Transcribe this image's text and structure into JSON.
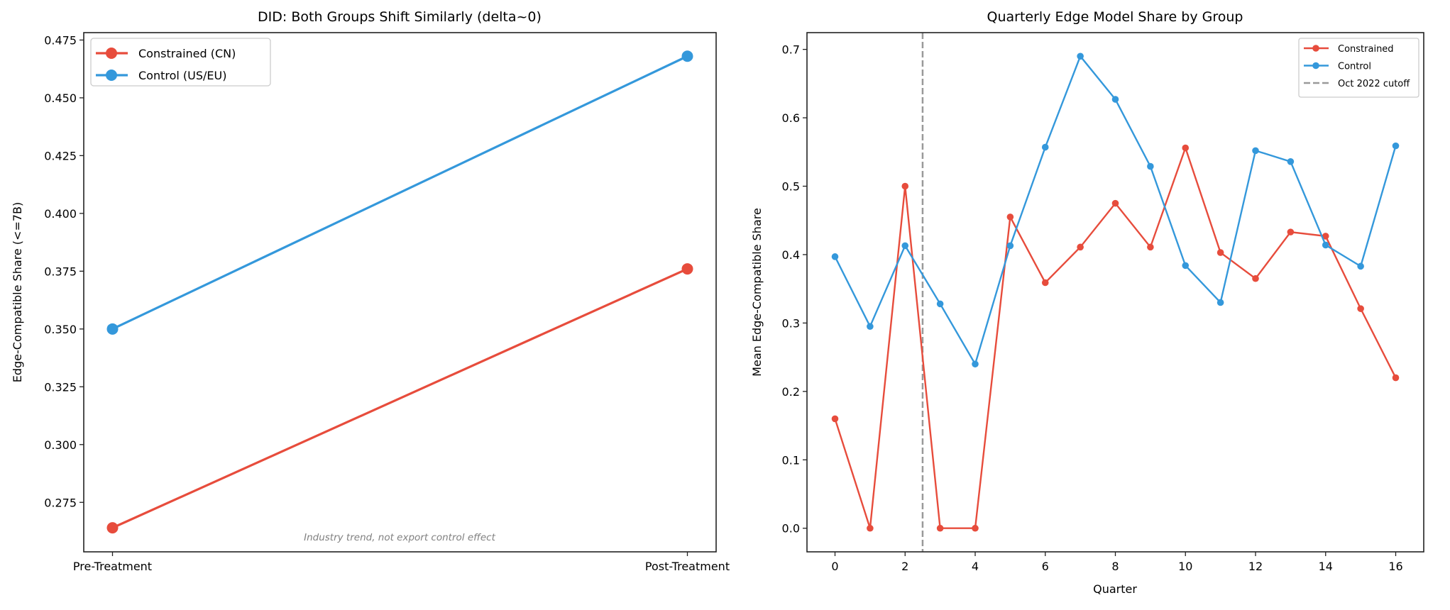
{
  "chart_data": [
    {
      "type": "line",
      "title": "DID: Both Groups Shift Similarly (delta~0)",
      "xlabel": "",
      "ylabel": "Edge-Compatible Share (<=7B)",
      "categories": [
        "Pre-Treatment",
        "Post-Treatment"
      ],
      "ylim": [
        0.2536,
        0.4782
      ],
      "yticks": [
        "0.275",
        "0.300",
        "0.325",
        "0.350",
        "0.375",
        "0.400",
        "0.425",
        "0.450",
        "0.475"
      ],
      "series": [
        {
          "name": "Constrained (CN)",
          "color": "#e74c3c",
          "values": [
            0.264,
            0.376
          ]
        },
        {
          "name": "Control (US/EU)",
          "color": "#3498db",
          "values": [
            0.35,
            0.468
          ]
        }
      ],
      "annotation": "Industry trend, not export control effect",
      "legend": "top-left",
      "grid": false
    },
    {
      "type": "line",
      "title": "Quarterly Edge Model Share by Group",
      "xlabel": "Quarter",
      "ylabel": "Mean Edge-Compatible Share",
      "x": [
        0,
        1,
        2,
        3,
        4,
        5,
        6,
        7,
        8,
        9,
        10,
        11,
        12,
        13,
        14,
        15,
        16
      ],
      "xlim": [
        -0.8,
        16.8
      ],
      "ylim": [
        -0.0345,
        0.7245
      ],
      "xticks": [
        "0",
        "2",
        "4",
        "6",
        "8",
        "10",
        "12",
        "14",
        "16"
      ],
      "yticks": [
        "0.0",
        "0.1",
        "0.2",
        "0.3",
        "0.4",
        "0.5",
        "0.6",
        "0.7"
      ],
      "series": [
        {
          "name": "Constrained",
          "color": "#e74c3c",
          "values": [
            0.16,
            0.0,
            0.5,
            0.0,
            0.0,
            0.455,
            0.359,
            0.411,
            0.475,
            0.411,
            0.556,
            0.403,
            0.365,
            0.433,
            0.427,
            0.321,
            0.22
          ]
        },
        {
          "name": "Control",
          "color": "#3498db",
          "values": [
            0.397,
            0.295,
            0.413,
            0.328,
            0.24,
            0.413,
            0.557,
            0.69,
            0.627,
            0.529,
            0.384,
            0.33,
            0.552,
            0.536,
            0.414,
            0.383,
            0.559
          ]
        }
      ],
      "vline": {
        "x": 2.5,
        "label": "Oct 2022 cutoff",
        "color": "#999999",
        "style": "dashed"
      },
      "legend": "top-right",
      "grid": false
    }
  ]
}
